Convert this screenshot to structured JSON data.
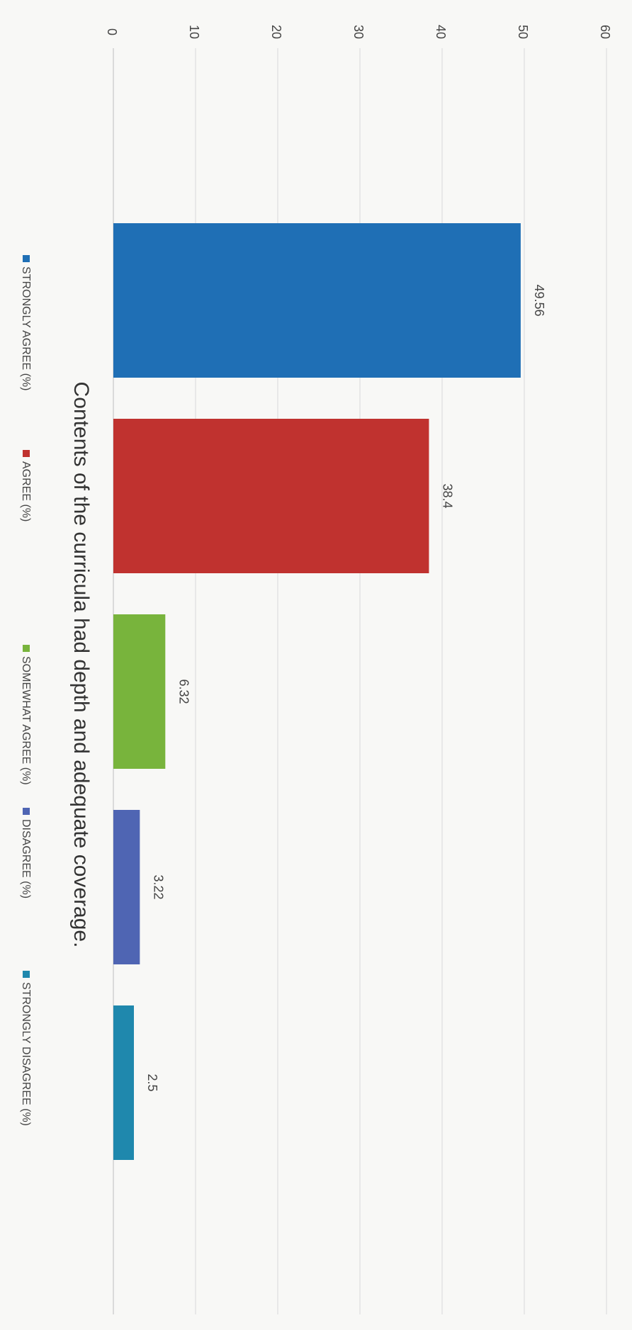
{
  "chart_data": {
    "type": "bar",
    "title": "Contents of the curricula had depth and adequate coverage.",
    "ylim": [
      0,
      60
    ],
    "ticks": [
      "0",
      "10",
      "20",
      "30",
      "40",
      "50",
      "60"
    ],
    "grid": true,
    "legend_position": "bottom",
    "orientation": "rotated-90",
    "series": [
      {
        "name": "STRONGLY AGREE (%)",
        "value": 49.56,
        "label": "49.56",
        "color": "#1f6fb5"
      },
      {
        "name": "AGREE (%)",
        "value": 38.4,
        "label": "38.4",
        "color": "#c0322f"
      },
      {
        "name": "SOMEWHAT AGREE (%)",
        "value": 6.32,
        "label": "6.32",
        "color": "#78b43c"
      },
      {
        "name": "DISAGREE (%)",
        "value": 3.22,
        "label": "3.22",
        "color": "#4f65b3"
      },
      {
        "name": "STRONGLY DISAGREE (%)",
        "value": 2.5,
        "label": "2.5",
        "color": "#1f88ad"
      }
    ]
  }
}
